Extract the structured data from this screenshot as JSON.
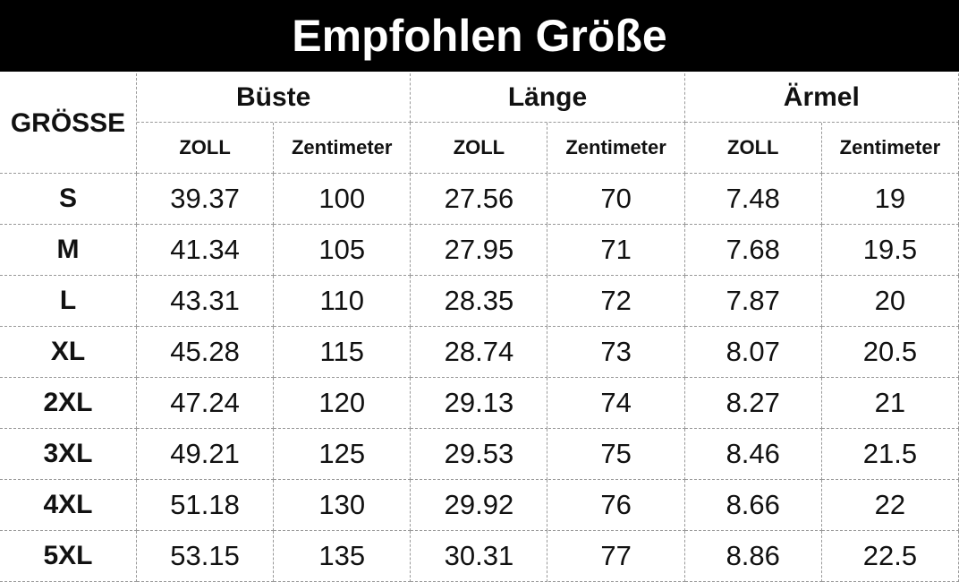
{
  "header": {
    "title": "Empfohlen Größe"
  },
  "table": {
    "row_header": "GRÖSSE",
    "groups": [
      {
        "name": "Büste",
        "units": [
          "ZOLL",
          "Zentimeter"
        ]
      },
      {
        "name": "Länge",
        "units": [
          "ZOLL",
          "Zentimeter"
        ]
      },
      {
        "name": "Ärmel",
        "units": [
          "ZOLL",
          "Zentimeter"
        ]
      }
    ],
    "rows": [
      [
        "S",
        "39.37",
        "100",
        "27.56",
        "70",
        "7.48",
        "19"
      ],
      [
        "M",
        "41.34",
        "105",
        "27.95",
        "71",
        "7.68",
        "19.5"
      ],
      [
        "L",
        "43.31",
        "110",
        "28.35",
        "72",
        "7.87",
        "20"
      ],
      [
        "XL",
        "45.28",
        "115",
        "28.74",
        "73",
        "8.07",
        "20.5"
      ],
      [
        "2XL",
        "47.24",
        "120",
        "29.13",
        "74",
        "8.27",
        "21"
      ],
      [
        "3XL",
        "49.21",
        "125",
        "29.53",
        "75",
        "8.46",
        "21.5"
      ],
      [
        "4XL",
        "51.18",
        "130",
        "29.92",
        "76",
        "8.66",
        "22"
      ],
      [
        "5XL",
        "53.15",
        "135",
        "30.31",
        "77",
        "8.86",
        "22.5"
      ]
    ]
  }
}
